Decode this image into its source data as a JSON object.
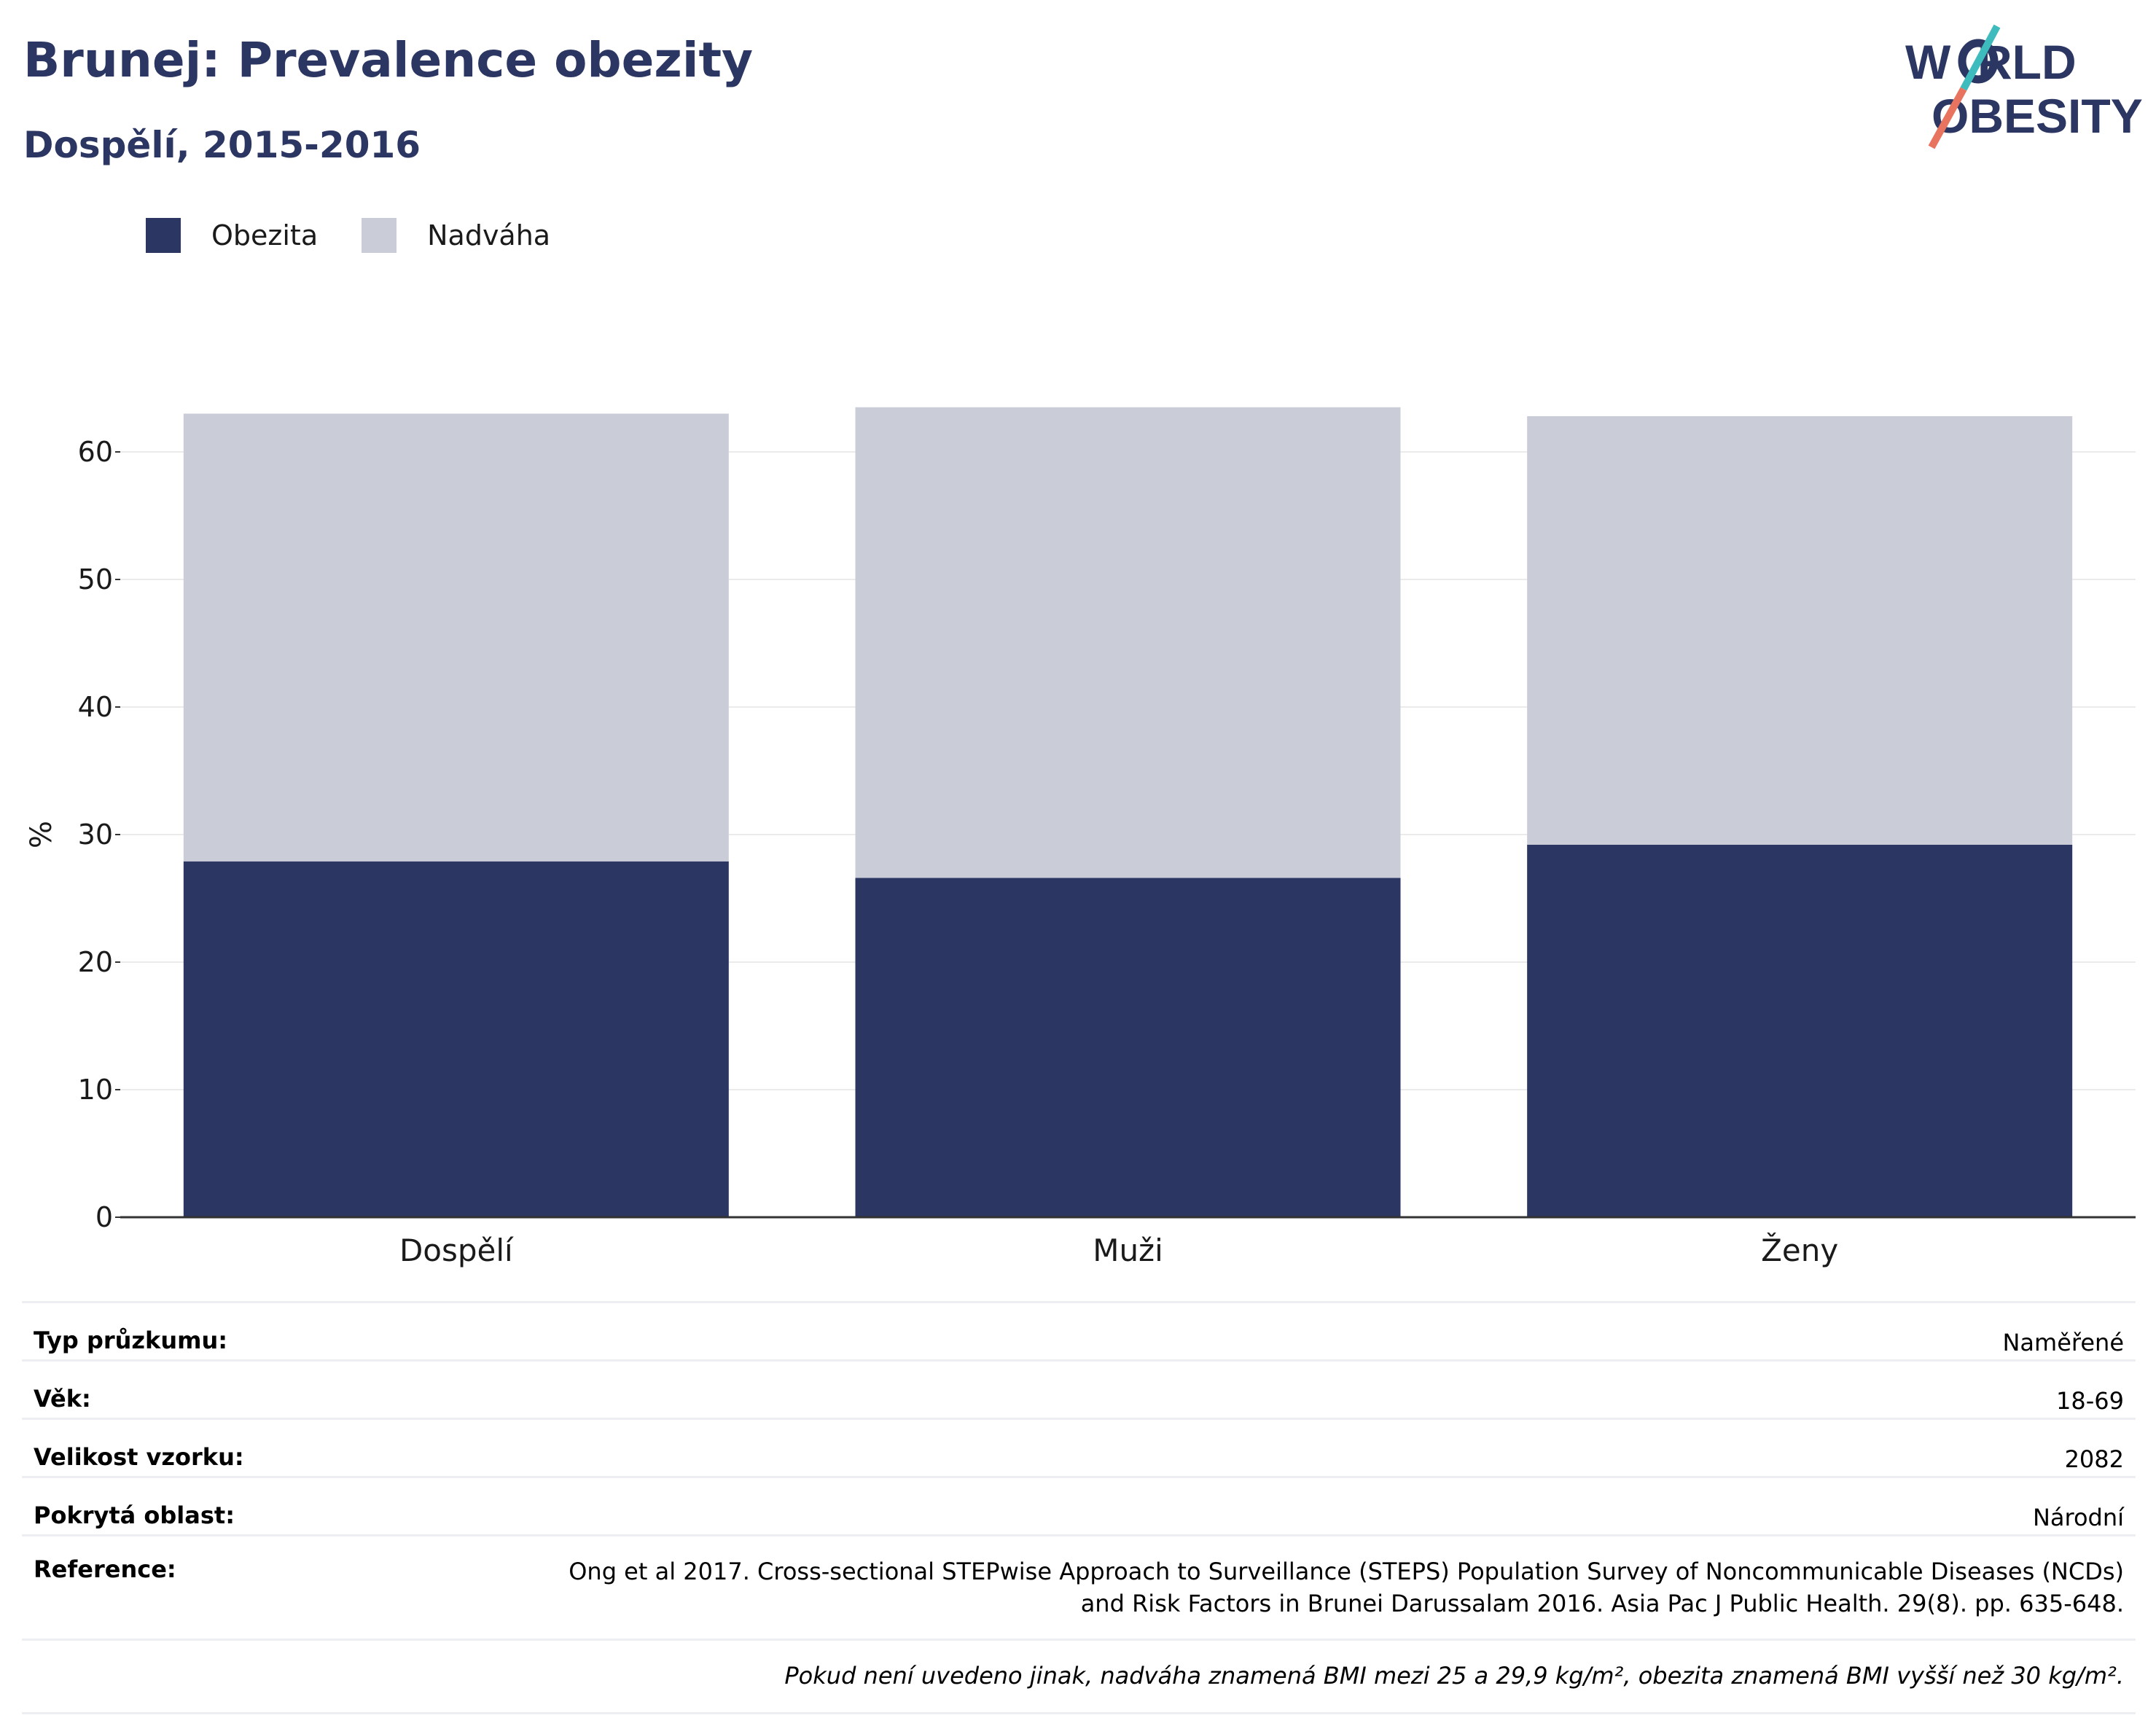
{
  "header": {
    "title": "Brunej: Prevalence obezity",
    "subtitle": "Dospělí, 2015-2016"
  },
  "logo": {
    "line1": "W  RLD",
    "line2": "OBESITY",
    "colors": {
      "text": "#2b3663",
      "slash_top": "#3dbbbd",
      "slash_bottom": "#e8735e"
    }
  },
  "legend": {
    "items": [
      {
        "label": "Obezita",
        "color": "#2b3663"
      },
      {
        "label": "Nadváha",
        "color": "#cacdd8"
      }
    ]
  },
  "chart_data": {
    "type": "bar",
    "stacked": true,
    "categories": [
      "Dospělí",
      "Muži",
      "Ženy"
    ],
    "series": [
      {
        "name": "Obezita",
        "color": "#2b3663",
        "values": [
          27.9,
          26.6,
          29.2
        ]
      },
      {
        "name": "Nadváha",
        "color": "#cacdd8",
        "values": [
          35.1,
          36.9,
          33.6
        ]
      }
    ],
    "ylabel": "%",
    "xlabel": "",
    "ylim": [
      0,
      65
    ],
    "yticks": [
      0,
      10,
      20,
      30,
      40,
      50,
      60
    ],
    "grid": true,
    "legend_position": "top-left"
  },
  "info": {
    "rows": [
      {
        "label": "Typ průzkumu:",
        "value": "Naměřené"
      },
      {
        "label": "Věk:",
        "value": "18-69"
      },
      {
        "label": "Velikost vzorku:",
        "value": "2082"
      },
      {
        "label": "Pokrytá oblast:",
        "value": "Národní"
      }
    ],
    "reference": {
      "label": "Reference:",
      "line1": "Ong et al 2017. Cross-sectional STEPwise Approach to Surveillance (STEPS) Population Survey of Noncommunicable Diseases (NCDs)",
      "line2": "and Risk Factors in Brunei Darussalam 2016. Asia Pac J Public Health. 29(8). pp. 635-648."
    },
    "note": "Pokud není uvedeno jinak, nadváha znamená BMI mezi 25 a 29,9 kg/m², obezita znamená BMI vyšší než 30 kg/m²."
  }
}
